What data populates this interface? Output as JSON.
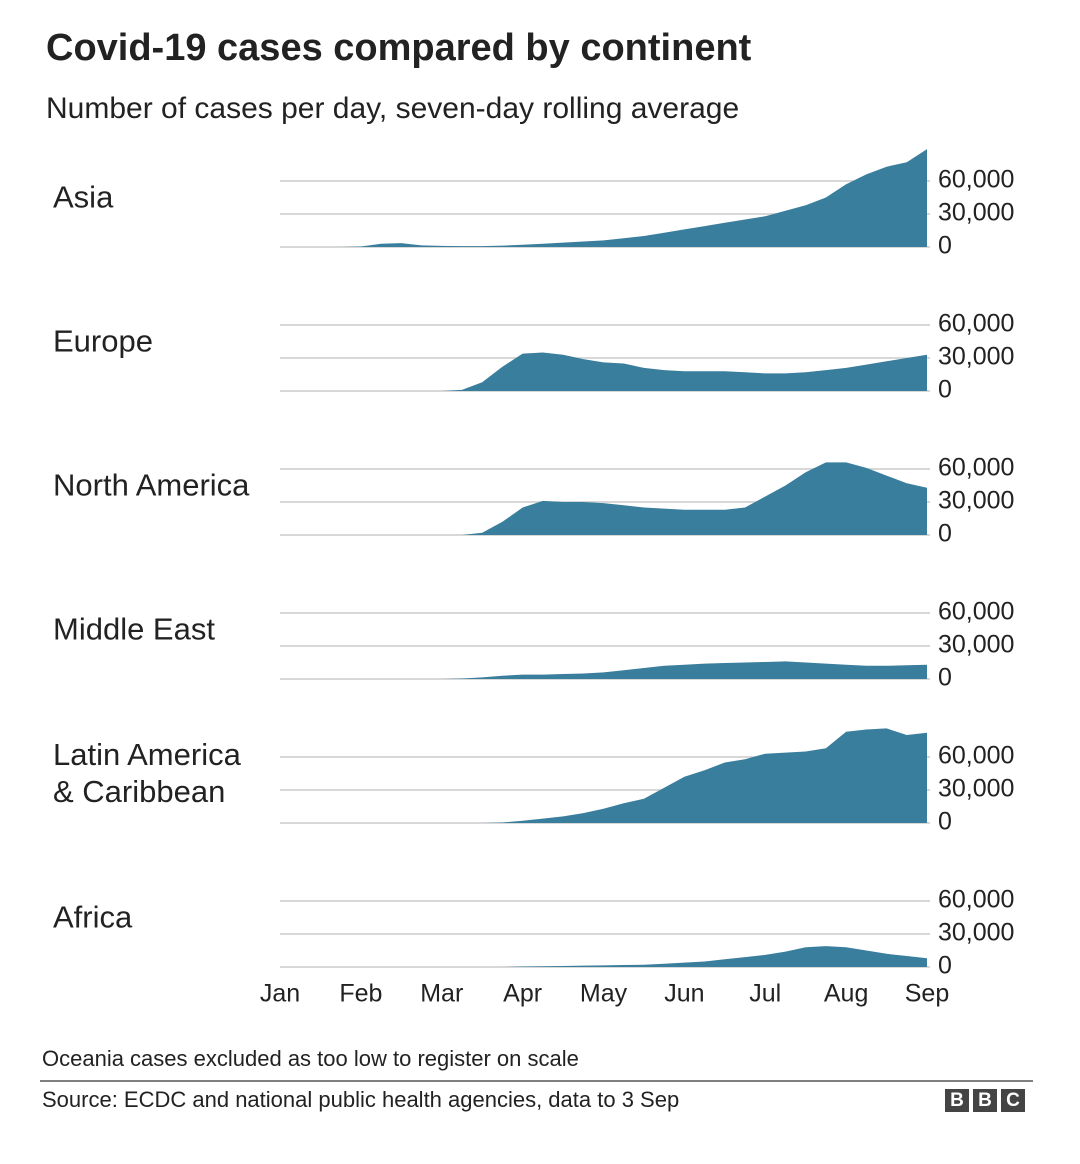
{
  "title": "Covid-19 cases compared by continent",
  "subtitle": "Number of cases per day, seven-day rolling average",
  "note": "Oceania cases excluded as too low to register on scale",
  "source": "Source: ECDC and national public health agencies, data to 3 Sep",
  "logo": [
    "B",
    "B",
    "C"
  ],
  "chart_data": [
    {
      "type": "area",
      "title": "Asia",
      "color": "#3a7e9e",
      "grid": true,
      "values": [
        0,
        0,
        0,
        0,
        500,
        3000,
        3500,
        1500,
        1000,
        800,
        800,
        1200,
        2000,
        3000,
        4000,
        5000,
        6000,
        8000,
        10000,
        13000,
        16000,
        19000,
        22000,
        25000,
        28000,
        33000,
        38000,
        45000,
        57000,
        66000,
        73000,
        77000,
        89000
      ],
      "ylim": [
        0,
        90000
      ],
      "yticks": [
        0,
        {
          "value": 30000,
          "label": "30,000"
        },
        {
          "value": 60000,
          "label": "60,000"
        }
      ]
    },
    {
      "type": "area",
      "title": "Europe",
      "color": "#3a7e9e",
      "grid": true,
      "values": [
        0,
        0,
        0,
        0,
        0,
        0,
        0,
        0,
        0,
        1000,
        8000,
        22000,
        34000,
        35000,
        33000,
        29000,
        26000,
        25000,
        21000,
        19000,
        18000,
        18000,
        18000,
        17000,
        16000,
        16000,
        17000,
        19000,
        21000,
        24000,
        27000,
        30000,
        33000
      ],
      "ylim": [
        0,
        90000
      ],
      "yticks": [
        0,
        {
          "value": 30000,
          "label": "30,000"
        },
        {
          "value": 60000,
          "label": "60,000"
        }
      ]
    },
    {
      "type": "area",
      "title": "North America",
      "color": "#3a7e9e",
      "grid": true,
      "values": [
        0,
        0,
        0,
        0,
        0,
        0,
        0,
        0,
        0,
        0,
        2000,
        12000,
        25000,
        31000,
        30000,
        30000,
        29000,
        27000,
        25000,
        24000,
        23000,
        23000,
        23000,
        25000,
        35000,
        45000,
        57000,
        66000,
        66000,
        61000,
        54000,
        47000,
        43000
      ],
      "ylim": [
        0,
        90000
      ],
      "yticks": [
        0,
        {
          "value": 30000,
          "label": "30,000"
        },
        {
          "value": 60000,
          "label": "60,000"
        }
      ]
    },
    {
      "type": "area",
      "title": "Middle East",
      "color": "#3a7e9e",
      "grid": true,
      "values": [
        0,
        0,
        0,
        0,
        0,
        0,
        0,
        0,
        0,
        500,
        1500,
        3000,
        4000,
        4000,
        4500,
        5000,
        6000,
        8000,
        10000,
        12000,
        13000,
        14000,
        14500,
        15000,
        15500,
        16000,
        15000,
        14000,
        13000,
        12000,
        12000,
        12500,
        13000
      ],
      "ylim": [
        0,
        90000
      ],
      "yticks": [
        0,
        {
          "value": 30000,
          "label": "30,000"
        },
        {
          "value": 60000,
          "label": "60,000"
        }
      ]
    },
    {
      "type": "area",
      "title": "Latin America\n& Caribbean",
      "color": "#3a7e9e",
      "grid": true,
      "values": [
        0,
        0,
        0,
        0,
        0,
        0,
        0,
        0,
        0,
        0,
        0,
        500,
        2000,
        4000,
        6000,
        9000,
        13000,
        18000,
        22000,
        32000,
        42000,
        48000,
        55000,
        58000,
        63000,
        64000,
        65000,
        68000,
        83000,
        85000,
        86000,
        80000,
        82000
      ],
      "ylim": [
        0,
        90000
      ],
      "yticks": [
        0,
        {
          "value": 30000,
          "label": "30,000"
        },
        {
          "value": 60000,
          "label": "60,000"
        }
      ]
    },
    {
      "type": "area",
      "title": "Africa",
      "color": "#3a7e9e",
      "grid": true,
      "categories": [
        "Jan",
        null,
        null,
        null,
        "Feb",
        null,
        null,
        null,
        "Mar",
        null,
        null,
        null,
        "Apr",
        null,
        null,
        null,
        "May",
        null,
        null,
        null,
        "Jun",
        null,
        null,
        null,
        "Jul",
        null,
        null,
        null,
        "Aug",
        null,
        null,
        null,
        "Sep"
      ],
      "values": [
        0,
        0,
        0,
        0,
        0,
        0,
        0,
        0,
        0,
        0,
        0,
        0,
        500,
        700,
        900,
        1200,
        1500,
        1800,
        2000,
        3000,
        4000,
        5000,
        7000,
        9000,
        11000,
        14000,
        18000,
        19000,
        18000,
        15000,
        12000,
        10000,
        8000
      ],
      "ylim": [
        0,
        90000
      ],
      "yticks": [
        0,
        {
          "value": 30000,
          "label": "30,000"
        },
        {
          "value": 60000,
          "label": "60,000"
        }
      ]
    }
  ]
}
